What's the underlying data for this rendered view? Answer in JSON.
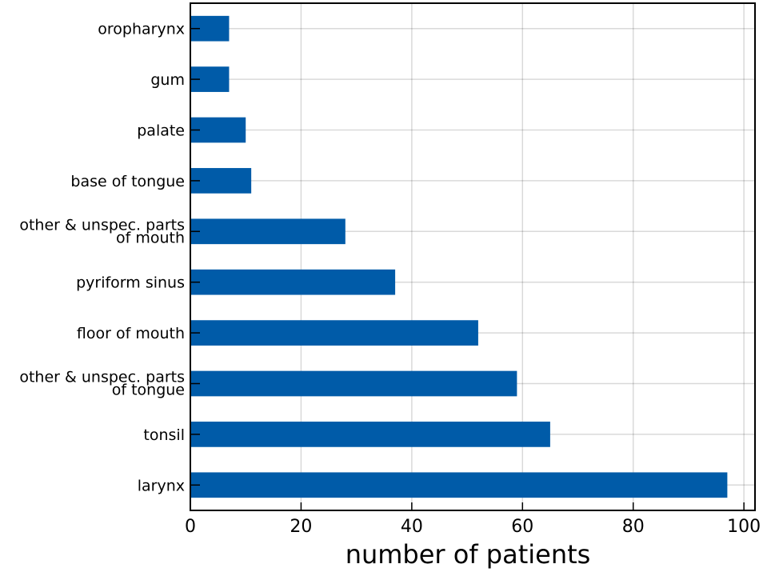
{
  "chart_data": {
    "type": "bar",
    "orientation": "horizontal",
    "categories": [
      "larynx",
      "tonsil",
      [
        "other & unspec. parts",
        "of tongue"
      ],
      "floor of mouth",
      "pyriform sinus",
      [
        "other & unspec. parts",
        "of mouth"
      ],
      "base of tongue",
      "palate",
      "gum",
      "oropharynx"
    ],
    "values": [
      97,
      65,
      59,
      52,
      37,
      28,
      11,
      10,
      7,
      7
    ],
    "xlabel": "number of patients",
    "ylabel": "",
    "xlim": [
      0,
      102
    ],
    "xticks": [
      0,
      20,
      40,
      60,
      80,
      100
    ],
    "grid": true,
    "bar_color": "#005ba8"
  }
}
